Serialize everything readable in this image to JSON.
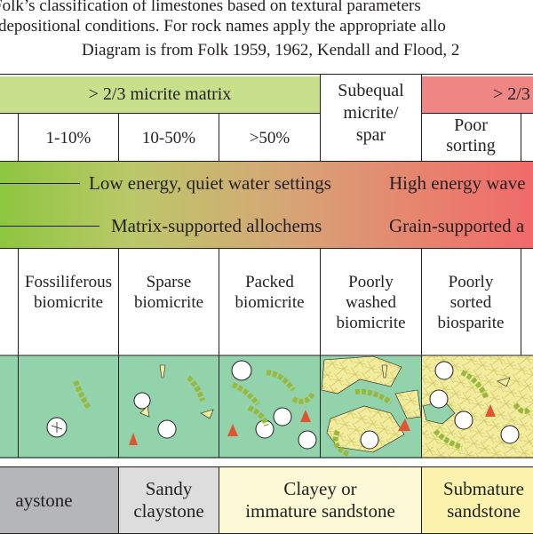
{
  "caption": {
    "line1": "Folk’s classification of limestones based on textural parameters",
    "line2": "depositional conditions. For rock names apply the appropriate allo",
    "line3": "Diagram is from Folk 1959, 1962, Kendall and Flood, 2"
  },
  "header": {
    "micrite_matrix": "> 2/3 micrite matrix",
    "subequal_line1": "Subequal",
    "subequal_line2": "micrite/",
    "subequal_line3": "spar",
    "spar_cement": "> 2/3"
  },
  "allochem_ranges": {
    "r1": "1-10%",
    "r2": "10-50%",
    "r3": ">50%",
    "poor_line1": "Poor",
    "poor_line2": "sorting"
  },
  "energy_band": {
    "low": "Low energy, quiet water settings",
    "high": "High energy wave"
  },
  "support_band": {
    "matrix": "Matrix-supported allochems",
    "grain": "Grain-supported a"
  },
  "rock_names": {
    "fossiliferous_1": "Fossiliferous",
    "fossiliferous_2": "biomicrite",
    "sparse_1": "Sparse",
    "sparse_2": "biomicrite",
    "packed_1": "Packed",
    "packed_2": "biomicrite",
    "poorly_washed_1": "Poorly",
    "poorly_washed_2": "washed",
    "poorly_washed_3": "biomicrite",
    "poorly_sorted_1": "Poorly",
    "poorly_sorted_2": "sorted",
    "poorly_sorted_3": "biosparite"
  },
  "analogues": {
    "claystone": "aystone",
    "sandy_1": "Sandy",
    "sandy_2": "claystone",
    "clayey_1": "Clayey or",
    "clayey_2": "immature sandstone",
    "submature_1": "Submature",
    "submature_2": "sandstone"
  },
  "colors": {
    "micrite_header": "#c8df8c",
    "spar_header": "#f08585",
    "micrite_fill": "#93d3ab",
    "spar_fill": "#f2ec9e",
    "claystone_fill": "#b5b6b8",
    "sandy_fill": "#dddddd",
    "clayey_fill": "#fdf9d6",
    "submature_fill": "#fbf3ad",
    "fossil_green": "#99b83e",
    "fossil_orange": "#e2532e"
  }
}
